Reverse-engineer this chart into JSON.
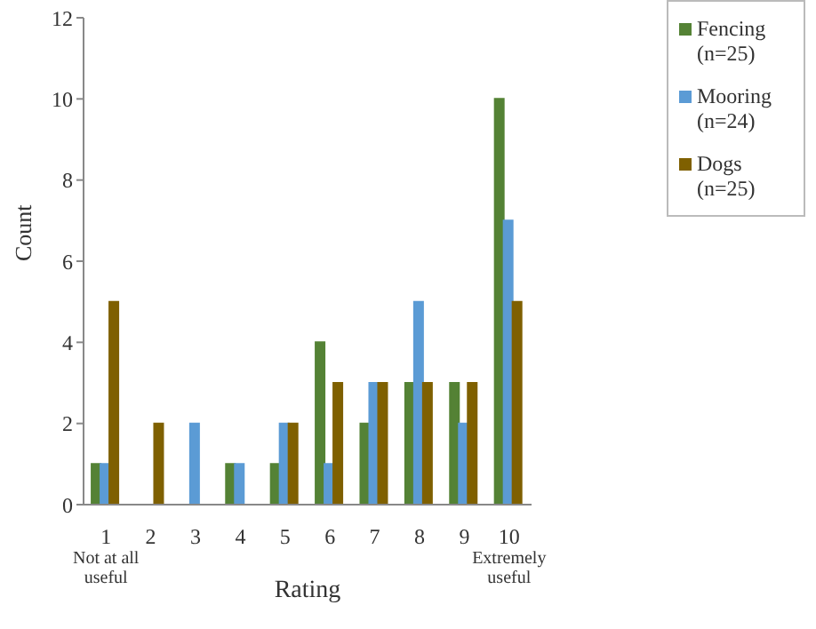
{
  "chart_data": {
    "type": "bar",
    "xlabel": "Rating",
    "ylabel": "Count",
    "categories": [
      "1\nNot at all\nuseful",
      "2",
      "3",
      "4",
      "5",
      "6",
      "7",
      "8",
      "9",
      "10\nExtremely\nuseful"
    ],
    "series": [
      {
        "name": "Fencing\n(n=25)",
        "color": "#548235",
        "values": [
          1,
          0,
          0,
          1,
          1,
          4,
          2,
          3,
          3,
          10
        ]
      },
      {
        "name": "Mooring\n(n=24)",
        "color": "#5b9bd5",
        "values": [
          1,
          0,
          2,
          1,
          2,
          1,
          3,
          5,
          2,
          7
        ]
      },
      {
        "name": "Dogs\n(n=25)",
        "color": "#7f6000",
        "values": [
          5,
          2,
          0,
          0,
          2,
          3,
          3,
          3,
          3,
          5
        ]
      }
    ],
    "ylim": [
      0,
      12
    ],
    "yticks": [
      0,
      2,
      4,
      6,
      8,
      10,
      12
    ],
    "grid": false,
    "legend": "top right"
  }
}
